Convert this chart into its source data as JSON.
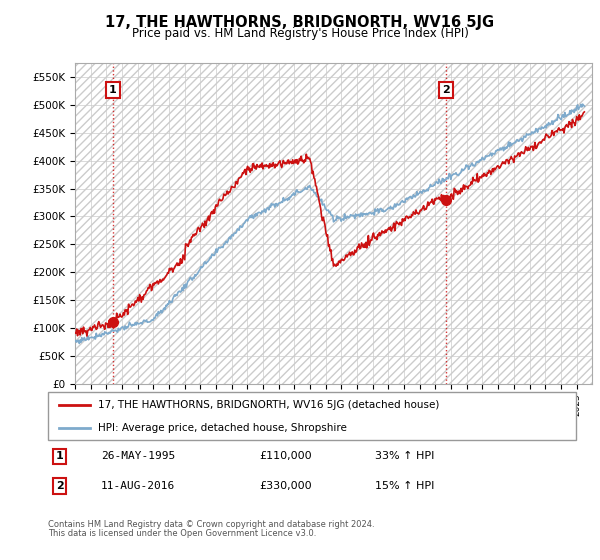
{
  "title": "17, THE HAWTHORNS, BRIDGNORTH, WV16 5JG",
  "subtitle": "Price paid vs. HM Land Registry's House Price Index (HPI)",
  "legend_line1": "17, THE HAWTHORNS, BRIDGNORTH, WV16 5JG (detached house)",
  "legend_line2": "HPI: Average price, detached house, Shropshire",
  "sale1_date": "26-MAY-1995",
  "sale1_price": 110000,
  "sale1_label": "33% ↑ HPI",
  "sale2_date": "11-AUG-2016",
  "sale2_price": 330000,
  "sale2_label": "15% ↑ HPI",
  "footer1": "Contains HM Land Registry data © Crown copyright and database right 2024.",
  "footer2": "This data is licensed under the Open Government Licence v3.0.",
  "hpi_color": "#7eaacc",
  "sale_color": "#cc1111",
  "vline_color": "#cc1111",
  "ylim": [
    0,
    575000
  ],
  "yticks": [
    0,
    50000,
    100000,
    150000,
    200000,
    250000,
    300000,
    350000,
    400000,
    450000,
    500000,
    550000
  ],
  "ytick_labels": [
    "£0",
    "£50K",
    "£100K",
    "£150K",
    "£200K",
    "£250K",
    "£300K",
    "£350K",
    "£400K",
    "£450K",
    "£500K",
    "£550K"
  ],
  "xmin": 1993,
  "xmax": 2026
}
